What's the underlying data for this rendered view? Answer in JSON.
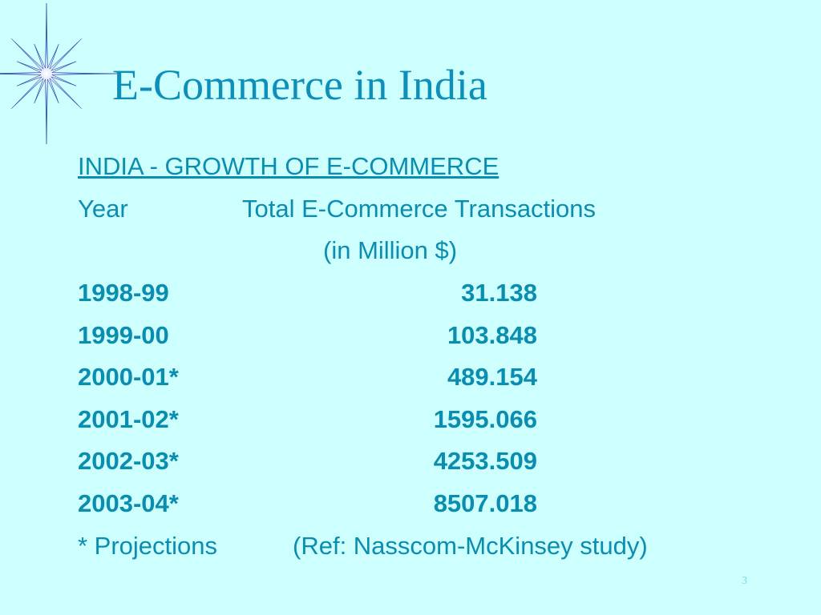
{
  "title": "E-Commerce in India",
  "table": {
    "caption": "INDIA - GROWTH OF E-COMMERCE",
    "headers": [
      "Year",
      "Total E-Commerce Transactions",
      "(in Million $)"
    ],
    "rows": [
      [
        "1998-99",
        "31.138"
      ],
      [
        "1999-00",
        "103.848"
      ],
      [
        "2000-01*",
        "489.154"
      ],
      [
        "2001-02*",
        "1595.066"
      ],
      [
        "2002-03*",
        "4253.509"
      ],
      [
        "2003-04*",
        "8507.018"
      ]
    ]
  },
  "footnote": {
    "note": "* Projections",
    "reference": "(Ref: Nasscom-McKinsey study)"
  },
  "page_number": "3"
}
